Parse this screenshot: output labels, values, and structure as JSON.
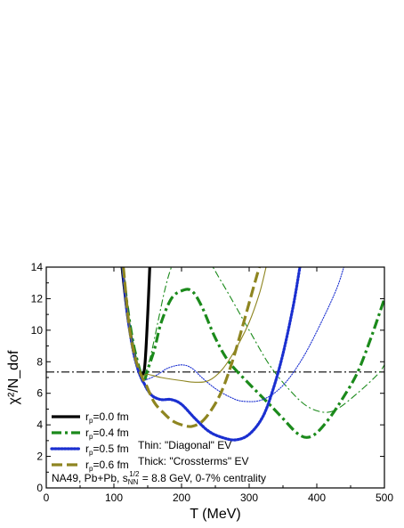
{
  "chart_data": {
    "type": "line",
    "xlabel": "T (MeV)",
    "ylabel": "χ²/N_dof",
    "xlim": [
      0,
      500
    ],
    "ylim": [
      0,
      14
    ],
    "xticks": [
      "0",
      "100",
      "200",
      "300",
      "400",
      "500"
    ],
    "yticks": [
      "0",
      "2",
      "4",
      "6",
      "8",
      "10",
      "12",
      "14"
    ],
    "reference_line": {
      "y": 7.35,
      "style": "dash-dot"
    },
    "annotations": {
      "line1": "Thin: \"Diagonal\" EV",
      "line2": "Thick: \"Crossterms\" EV",
      "line3_prefix": "NA49, Pb+Pb, s",
      "line3_sub": "NN",
      "line3_sup": "1/2",
      "line3_suffix": " = 8.8 GeV, 0-7% centrality"
    },
    "legend_position": "bottom-left",
    "series": [
      {
        "name": "r_p=0.0 fm",
        "legend_base": "r",
        "legend_sub": "p",
        "legend_rest": "=0.0 fm",
        "color": "#000000",
        "style": "solid",
        "weight": "thick",
        "points": [
          [
            112,
            14
          ],
          [
            120,
            11
          ],
          [
            128,
            9
          ],
          [
            133,
            8
          ],
          [
            138,
            7.4
          ],
          [
            142,
            7.2
          ],
          [
            145,
            7.5
          ],
          [
            147,
            8.5
          ],
          [
            150,
            11
          ],
          [
            153,
            14
          ]
        ]
      },
      {
        "name": "r_p=0.0 fm (Diagonal)",
        "legend": false,
        "color": "#000000",
        "style": "solid",
        "weight": "thin",
        "points": [
          [
            112,
            14
          ],
          [
            120,
            11
          ],
          [
            128,
            9
          ],
          [
            133,
            8
          ],
          [
            138,
            7.4
          ],
          [
            142,
            7.3
          ],
          [
            145,
            7.6
          ],
          [
            147,
            8.6
          ],
          [
            150,
            11
          ],
          [
            153,
            14
          ]
        ]
      },
      {
        "name": "r_p=0.4 fm",
        "legend_base": "r",
        "legend_sub": "p",
        "legend_rest": "=0.4 fm",
        "color": "#1b8a1b",
        "style": "dash-dot",
        "weight": "thick",
        "points": [
          [
            113,
            14
          ],
          [
            120,
            11.5
          ],
          [
            128,
            9.3
          ],
          [
            135,
            8
          ],
          [
            141,
            7.1
          ],
          [
            145,
            6.8
          ],
          [
            150,
            7.5
          ],
          [
            160,
            8.8
          ],
          [
            170,
            10.5
          ],
          [
            185,
            12
          ],
          [
            200,
            12.5
          ],
          [
            215,
            12.5
          ],
          [
            230,
            11.5
          ],
          [
            250,
            9.5
          ],
          [
            270,
            8
          ],
          [
            300,
            6.6
          ],
          [
            330,
            5.3
          ],
          [
            350,
            4.4
          ],
          [
            370,
            3.5
          ],
          [
            385,
            3.2
          ],
          [
            400,
            3.5
          ],
          [
            420,
            4.5
          ],
          [
            440,
            5.8
          ],
          [
            460,
            7.3
          ],
          [
            480,
            9.5
          ],
          [
            500,
            12
          ]
        ]
      },
      {
        "name": "r_p=0.4 fm (Diagonal)",
        "legend": false,
        "color": "#1b8a1b",
        "style": "dash-dot",
        "weight": "thin",
        "points": [
          [
            113,
            14
          ],
          [
            120,
            11.5
          ],
          [
            128,
            9.3
          ],
          [
            135,
            7.9
          ],
          [
            141,
            7.1
          ],
          [
            147,
            7.3
          ],
          [
            155,
            8.5
          ],
          [
            165,
            10.5
          ],
          [
            175,
            12.5
          ],
          [
            185,
            14
          ],
          [
            200,
            15.5
          ],
          [
            230,
            15
          ],
          [
            260,
            13
          ],
          [
            300,
            10
          ],
          [
            330,
            7.8
          ],
          [
            360,
            6.2
          ],
          [
            385,
            5.2
          ],
          [
            410,
            4.8
          ],
          [
            430,
            5
          ],
          [
            460,
            6
          ],
          [
            490,
            7.2
          ],
          [
            500,
            7.8
          ]
        ]
      },
      {
        "name": "r_p=0.5 fm",
        "legend_base": "r",
        "legend_sub": "p",
        "legend_rest": "=0.5 fm",
        "color": "#1a2fd0",
        "style": "dotted",
        "weight": "thick",
        "points": [
          [
            113,
            14
          ],
          [
            120,
            11
          ],
          [
            128,
            8.8
          ],
          [
            135,
            7.6
          ],
          [
            141,
            6.9
          ],
          [
            145,
            6.6
          ],
          [
            150,
            6.2
          ],
          [
            158,
            5.8
          ],
          [
            170,
            5.6
          ],
          [
            185,
            5.6
          ],
          [
            200,
            5.3
          ],
          [
            220,
            4.4
          ],
          [
            240,
            3.6
          ],
          [
            260,
            3.2
          ],
          [
            280,
            3.05
          ],
          [
            300,
            3.4
          ],
          [
            320,
            4.5
          ],
          [
            335,
            6.2
          ],
          [
            350,
            8.5
          ],
          [
            365,
            11.5
          ],
          [
            375,
            14
          ]
        ]
      },
      {
        "name": "r_p=0.5 fm (Diagonal)",
        "legend": false,
        "color": "#1a2fd0",
        "style": "dotted",
        "weight": "thin",
        "points": [
          [
            113,
            14
          ],
          [
            120,
            11
          ],
          [
            128,
            8.8
          ],
          [
            135,
            7.5
          ],
          [
            141,
            6.9
          ],
          [
            150,
            6.9
          ],
          [
            165,
            7.2
          ],
          [
            180,
            7.6
          ],
          [
            200,
            7.8
          ],
          [
            215,
            7.6
          ],
          [
            230,
            7
          ],
          [
            250,
            6.3
          ],
          [
            270,
            5.8
          ],
          [
            290,
            5.5
          ],
          [
            320,
            5.6
          ],
          [
            350,
            6.5
          ],
          [
            380,
            8.3
          ],
          [
            410,
            10.8
          ],
          [
            430,
            12.7
          ],
          [
            440,
            14
          ]
        ]
      },
      {
        "name": "r_p=0.6 fm",
        "legend_base": "r",
        "legend_sub": "p",
        "legend_rest": "=0.6 fm",
        "color": "#8e8520",
        "style": "dashed",
        "weight": "thick",
        "points": [
          [
            114,
            14
          ],
          [
            122,
            10.5
          ],
          [
            130,
            8.5
          ],
          [
            138,
            7.4
          ],
          [
            143,
            6.9
          ],
          [
            147,
            6.6
          ],
          [
            152,
            6.1
          ],
          [
            160,
            5.4
          ],
          [
            170,
            4.9
          ],
          [
            185,
            4.3
          ],
          [
            200,
            4
          ],
          [
            215,
            3.9
          ],
          [
            230,
            4.2
          ],
          [
            245,
            5
          ],
          [
            260,
            6.2
          ],
          [
            275,
            8
          ],
          [
            290,
            10.2
          ],
          [
            305,
            12.5
          ],
          [
            315,
            14
          ]
        ]
      },
      {
        "name": "r_p=0.6 fm (Diagonal)",
        "legend": false,
        "color": "#8e8520",
        "style": "solid",
        "weight": "thin",
        "points": [
          [
            114,
            14
          ],
          [
            122,
            10.5
          ],
          [
            130,
            8.5
          ],
          [
            138,
            7.5
          ],
          [
            143,
            7.1
          ],
          [
            150,
            7.2
          ],
          [
            170,
            7
          ],
          [
            200,
            6.8
          ],
          [
            220,
            6.7
          ],
          [
            240,
            6.8
          ],
          [
            260,
            7.5
          ],
          [
            280,
            8.8
          ],
          [
            300,
            10.5
          ],
          [
            315,
            12.3
          ],
          [
            325,
            14
          ]
        ]
      }
    ]
  }
}
